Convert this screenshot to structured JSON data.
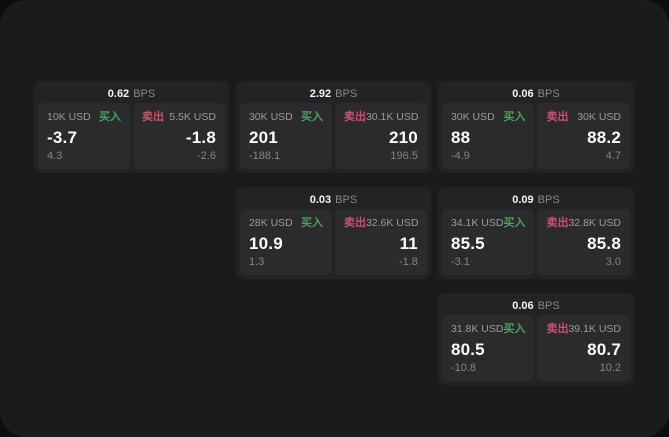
{
  "labels": {
    "bps_unit": "BPS",
    "buy": "买入",
    "sell": "卖出"
  },
  "colors": {
    "buy": "#46a35d",
    "sell": "#c9516b",
    "surface": "#1b1b1d",
    "card_bg": "#232325",
    "panel_bg": "#2b2b2d",
    "text_primary": "#fbfbfc",
    "text_muted": "#87878c"
  },
  "cards": [
    {
      "bps": "0.62",
      "buy": {
        "notional": "10K USD",
        "value": "-3.7",
        "sub": "4.3"
      },
      "sell": {
        "notional": "5.5K USD",
        "value": "-1.8",
        "sub": "-2.6"
      }
    },
    {
      "bps": "2.92",
      "buy": {
        "notional": "30K USD",
        "value": "201",
        "sub": "-188.1"
      },
      "sell": {
        "notional": "30.1K USD",
        "value": "210",
        "sub": "196.5"
      }
    },
    {
      "bps": "0.06",
      "buy": {
        "notional": "30K USD",
        "value": "88",
        "sub": "-4.9"
      },
      "sell": {
        "notional": "30K USD",
        "value": "88.2",
        "sub": "4.7"
      }
    },
    {
      "bps": "0.03",
      "buy": {
        "notional": "28K USD",
        "value": "10.9",
        "sub": "1.3"
      },
      "sell": {
        "notional": "32.6K USD",
        "value": "11",
        "sub": "-1.8"
      }
    },
    {
      "bps": "0.09",
      "buy": {
        "notional": "34.1K USD",
        "value": "85.5",
        "sub": "-3.1"
      },
      "sell": {
        "notional": "32.8K USD",
        "value": "85.8",
        "sub": "3.0"
      }
    },
    {
      "bps": "0.06",
      "buy": {
        "notional": "31.8K USD",
        "value": "80.5",
        "sub": "-10.8"
      },
      "sell": {
        "notional": "39.1K USD",
        "value": "80.7",
        "sub": "10.2"
      }
    }
  ]
}
